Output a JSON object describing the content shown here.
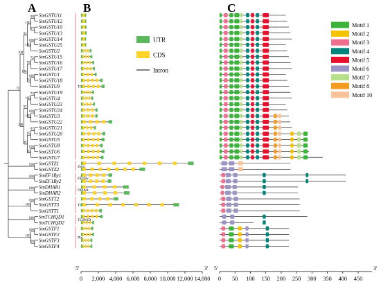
{
  "panels": {
    "a": "A",
    "b": "B",
    "c": "C"
  },
  "genes": [
    "SmGSTU11",
    "SmGSTU12",
    "SmGSTU10",
    "SmGSTU13",
    "SmGSTU14",
    "SmGSTU25",
    "SmGSTU2",
    "SmGSTU15",
    "SmGSTU16",
    "SmGSTU17",
    "SmGSTU1",
    "SmGSTU18",
    "SmGSTU9",
    "SmGSTU19",
    "SmGSTU4",
    "SmGSTU23",
    "SmGSTU24",
    "SmGSTU3",
    "SmGSTU22",
    "SmGSTU21",
    "SmGSTU20",
    "SmGSTU5",
    "SmGSTU8",
    "SmGSTU6",
    "SmGSTU7",
    "SmGSTZ1",
    "SmGSTZ2",
    "SmEF1By1",
    "SmEF1By2",
    "SmDHAR1",
    "SmDHAR2",
    "SmGSTT2",
    "SmGSTT3",
    "SmGSTT1",
    "SmTCHQD1",
    "SmTCHQD2",
    "SmGSTF1",
    "SmGSTF2",
    "SmGSTF3",
    "SmGSTF4"
  ],
  "bootstrap": [
    "71",
    "100",
    "93",
    "100",
    "99",
    "97",
    "100",
    "100",
    "100",
    "99",
    "72",
    "79",
    "100",
    "100",
    "97",
    "100",
    "73",
    "100",
    "100",
    "99",
    "65",
    "97",
    "95",
    "100",
    "100",
    "100",
    "100",
    "100",
    "100",
    "100",
    "100",
    "100",
    "99",
    "72",
    "100",
    "100",
    "100",
    "73",
    "100",
    "73"
  ],
  "classes": [
    {
      "label": "TAU",
      "first": 0,
      "last": 24
    },
    {
      "label": "Zeta",
      "first": 25,
      "last": 26
    },
    {
      "label": "EF1By",
      "first": 27,
      "last": 28
    },
    {
      "label": "DHAR",
      "first": 29,
      "last": 30
    },
    {
      "label": "Theta",
      "first": 31,
      "last": 33
    },
    {
      "label": "TCHQD",
      "first": 34,
      "last": 35
    },
    {
      "label": "Phi",
      "first": 36,
      "last": 39
    }
  ],
  "gene_structure": {
    "legend": [
      {
        "label": "UTR",
        "color": "#5cb85c"
      },
      {
        "label": "CDS",
        "color": "#ffd42a"
      },
      {
        "label": "Intron",
        "color": "#000000"
      }
    ],
    "axis": {
      "ticks": [
        "0",
        "2,000",
        "4,000",
        "6,000",
        "8,000",
        "10,000",
        "12,000",
        "14,000"
      ],
      "max": 14000,
      "left_end": "5'",
      "right_end": "3'"
    },
    "lengths": [
      600,
      600,
      620,
      640,
      580,
      600,
      1200,
      1300,
      1500,
      1600,
      1800,
      2500,
      2700,
      1500,
      1400,
      1600,
      1900,
      1900,
      3600,
      1700,
      2800,
      2700,
      2500,
      2700,
      2600,
      13000,
      7400,
      3600,
      3500,
      5500,
      5600,
      4300,
      11300,
      2400,
      2500,
      1500,
      1400,
      1500,
      1300,
      1300
    ]
  },
  "motifs": {
    "legend": [
      {
        "label": "Motif 1",
        "color": "#3cb43c"
      },
      {
        "label": "Motif 2",
        "color": "#f5c400"
      },
      {
        "label": "Motif 3",
        "color": "#ef6f8f"
      },
      {
        "label": "Motif 4",
        "color": "#00837a"
      },
      {
        "label": "Motif 5",
        "color": "#e8112d"
      },
      {
        "label": "Motif 6",
        "color": "#9b95c5"
      },
      {
        "label": "Motif 7",
        "color": "#b8e08c"
      },
      {
        "label": "Motif 8",
        "color": "#f49b22"
      },
      {
        "label": "Motif 10",
        "color": "#f8c39a"
      }
    ],
    "axis": {
      "ticks": [
        "0",
        "50",
        "100",
        "150",
        "200",
        "250",
        "300",
        "350",
        "400",
        "450"
      ],
      "max": 450,
      "left_end": "5'",
      "right_end": "3'"
    }
  }
}
